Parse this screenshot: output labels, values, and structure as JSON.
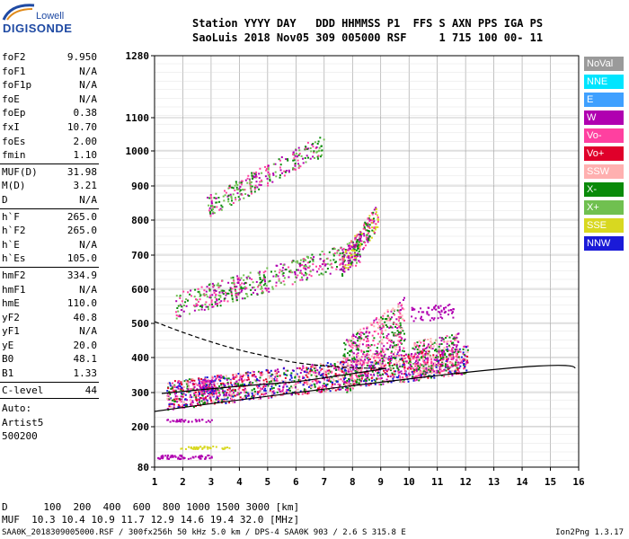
{
  "logo": {
    "line1": "Lowell",
    "line2": "DIGISONDE"
  },
  "header": {
    "line1": "Station YYYY DAY   DDD HHMMSS P1  FFS S AXN PPS IGA PS",
    "line2": "SaoLuis 2018 Nov05 309 005000 RSF     1 715 100 00- 11"
  },
  "params": {
    "group1": [
      {
        "name": "foF2",
        "value": "9.950"
      },
      {
        "name": "foF1",
        "value": "N/A"
      },
      {
        "name": "foF1p",
        "value": "N/A"
      },
      {
        "name": "foE",
        "value": "N/A"
      },
      {
        "name": "foEp",
        "value": "0.38"
      },
      {
        "name": "fxI",
        "value": "10.70"
      },
      {
        "name": "foEs",
        "value": "2.00"
      },
      {
        "name": "fmin",
        "value": "1.10"
      }
    ],
    "group2": [
      {
        "name": "MUF(D)",
        "value": "31.98"
      },
      {
        "name": "M(D)",
        "value": "3.21"
      },
      {
        "name": "D",
        "value": "N/A"
      }
    ],
    "group3": [
      {
        "name": "h`F",
        "value": "265.0"
      },
      {
        "name": "h`F2",
        "value": "265.0"
      },
      {
        "name": "h`E",
        "value": "N/A"
      },
      {
        "name": "h`Es",
        "value": "105.0"
      }
    ],
    "group4": [
      {
        "name": "hmF2",
        "value": "334.9"
      },
      {
        "name": "hmF1",
        "value": "N/A"
      },
      {
        "name": "hmE",
        "value": "110.0"
      },
      {
        "name": "yF2",
        "value": "40.8"
      },
      {
        "name": "yF1",
        "value": "N/A"
      },
      {
        "name": "yE",
        "value": "20.0"
      },
      {
        "name": "B0",
        "value": "48.1"
      },
      {
        "name": "B1",
        "value": "1.33"
      }
    ],
    "clevel": {
      "name": "C-level",
      "value": "44"
    },
    "auto": [
      "Auto:",
      "Artist5",
      "500200"
    ]
  },
  "axes": {
    "y_ticks": [
      "1280",
      "1100",
      "1000",
      "900",
      "800",
      "700",
      "600",
      "500",
      "400",
      "300",
      "200",
      "80"
    ],
    "x_ticks": [
      "1",
      "2",
      "3",
      "4",
      "5",
      "6",
      "7",
      "8",
      "9",
      "10",
      "11",
      "12",
      "13",
      "14",
      "15",
      "16"
    ]
  },
  "legend": [
    {
      "label": "NoVal",
      "color": "#9a9a9a"
    },
    {
      "label": "NNE",
      "color": "#00e5ff"
    },
    {
      "label": "E",
      "color": "#3fa0ff"
    },
    {
      "label": "W",
      "color": "#b000b0"
    },
    {
      "label": "Vo-",
      "color": "#ff40a0"
    },
    {
      "label": "Vo+",
      "color": "#e0002a"
    },
    {
      "label": "SSW",
      "color": "#ffb0b0"
    },
    {
      "label": "X-",
      "color": "#0a8a0a"
    },
    {
      "label": "X+",
      "color": "#70c050"
    },
    {
      "label": "SSE",
      "color": "#d8d820"
    },
    {
      "label": "NNW",
      "color": "#1a1ad8"
    }
  ],
  "footer": {
    "line1": "D      100  200  400  600  800 1000 1500 3000 [km]",
    "line2": "MUF  10.3 10.4 10.9 11.7 12.9 14.6 19.4 32.0 [MHz]",
    "line3": "SAA0K_2018309005000.RSF / 300fx256h 50 kHz 5.0 km / DPS-4 SAA0K 903 / 2.6 S 315.8 E",
    "version": "Ion2Png 1.3.17"
  }
}
